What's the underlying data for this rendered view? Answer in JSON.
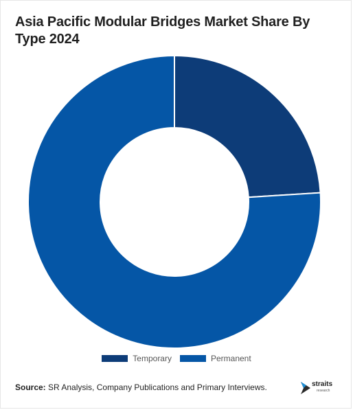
{
  "title": "Asia Pacific Modular Bridges Market Share By Type 2024",
  "chart_data": {
    "type": "pie",
    "variant": "donut",
    "title": "Asia Pacific Modular Bridges Market Share By Type 2024",
    "categories": [
      "Temporary",
      "Permanent"
    ],
    "values": [
      24,
      76
    ],
    "colors": [
      "#0d3c78",
      "#0556a6"
    ],
    "legend_position": "bottom"
  },
  "legend": {
    "items": [
      {
        "label": "Temporary",
        "color": "#0d3c78"
      },
      {
        "label": "Permanent",
        "color": "#0556a6"
      }
    ]
  },
  "source": {
    "label": "Source:",
    "text": "SR Analysis, Company Publications and Primary Interviews."
  },
  "logo": {
    "name": "straits",
    "tagline": "research",
    "icon": "straits-logo-icon"
  }
}
